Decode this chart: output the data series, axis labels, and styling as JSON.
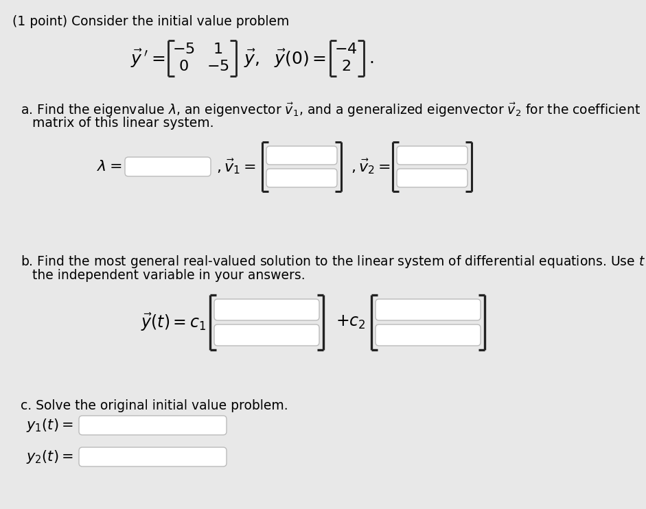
{
  "background_color": "#e8e8e8",
  "title_text": "(1 point) Consider the initial value problem",
  "box_color": "white",
  "box_edge_color": "#bbbbbb",
  "bracket_color": "#222222",
  "text_color": "black",
  "font_size_main": 13.5,
  "font_size_math": 15,
  "part_a_line1": "a. Find the eigenvalue $\\lambda$, an eigenvector $\\vec{v}_1$, and a generalized eigenvector $\\vec{v}_2$ for the coefficient",
  "part_a_line2": "matrix of this linear system.",
  "part_b_line1": "b. Find the most general real-valued solution to the linear system of differential equations. Use $t$ as",
  "part_b_line2": "the independent variable in your answers.",
  "part_c_text": "c. Solve the original initial value problem."
}
